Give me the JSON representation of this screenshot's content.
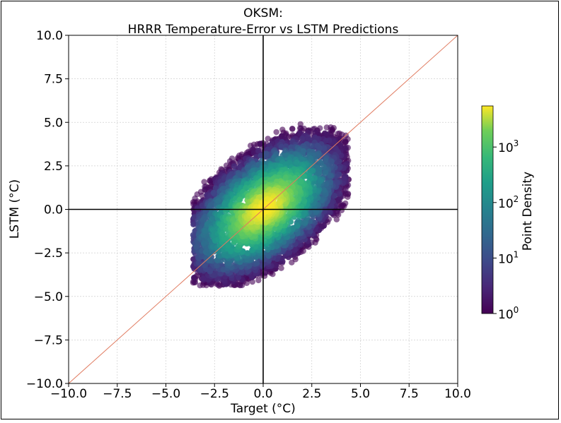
{
  "chart_data": {
    "type": "scatter",
    "title_line1": "OKSM:",
    "title_line2": "HRRR Temperature-Error vs LSTM Predictions",
    "xlabel": "Target (°C)",
    "ylabel": "LSTM (°C)",
    "xlim": [
      -10,
      10
    ],
    "ylim": [
      -10,
      10
    ],
    "xticks": [
      -10,
      -7.5,
      -5,
      -2.5,
      0,
      2.5,
      5,
      7.5,
      10
    ],
    "xtick_labels": [
      "−10.0",
      "−7.5",
      "−5.0",
      "−2.5",
      "0.0",
      "2.5",
      "5.0",
      "7.5",
      "10.0"
    ],
    "yticks": [
      10,
      7.5,
      5,
      2.5,
      0,
      -2.5,
      -5,
      -7.5,
      -10
    ],
    "ytick_labels": [
      "10.0",
      "7.5",
      "5.0",
      "2.5",
      "0.0",
      "−2.5",
      "−5.0",
      "−7.5",
      "−10.0"
    ],
    "grid": true,
    "reference_lines": {
      "identity_line": {
        "from": [
          -10,
          -10
        ],
        "to": [
          10,
          10
        ],
        "color": "#e07a5f"
      },
      "zero_lines": {
        "color": "#000000"
      }
    },
    "density_cloud": {
      "center": [
        0.0,
        0.0
      ],
      "x_range": [
        -3.6,
        4.4
      ],
      "y_range": [
        -4.4,
        5.4
      ],
      "correlation": 0.6
    },
    "colorbar": {
      "label": "Point Density",
      "scale": "log",
      "colormap": "viridis",
      "ticks": [
        {
          "value": 1,
          "label_base": "10",
          "label_exp": "0"
        },
        {
          "value": 10,
          "label_base": "10",
          "label_exp": "1"
        },
        {
          "value": 100,
          "label_base": "10",
          "label_exp": "2"
        },
        {
          "value": 1000,
          "label_base": "10",
          "label_exp": "3"
        }
      ],
      "range": [
        1,
        5500
      ]
    }
  }
}
